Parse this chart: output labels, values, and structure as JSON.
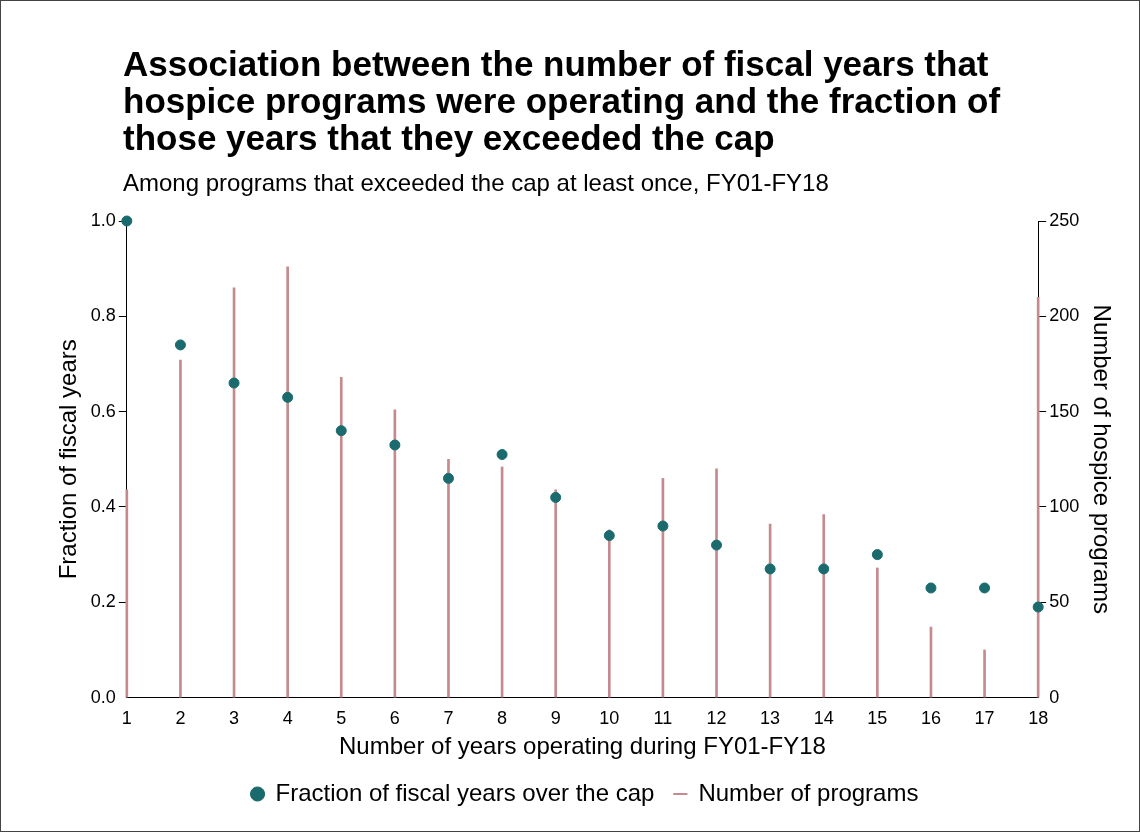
{
  "chart_data": {
    "type": "scatter",
    "title": "Association between the number of fiscal years that hospice programs were operating and the fraction of those years that they exceeded the cap",
    "subtitle": "Among programs that exceeded the cap at least once, FY01-FY18",
    "xlabel": "Number of years operating during FY01-FY18",
    "ylabel": "Fraction of fiscal years",
    "y2label": "Number of hospice programs",
    "x": [
      1,
      2,
      3,
      4,
      5,
      6,
      7,
      8,
      9,
      10,
      11,
      12,
      13,
      14,
      15,
      16,
      17,
      18
    ],
    "xlim": [
      1,
      18
    ],
    "xticks": [
      1,
      2,
      3,
      4,
      5,
      6,
      7,
      8,
      9,
      10,
      11,
      12,
      13,
      14,
      15,
      16,
      17,
      18
    ],
    "ylim": [
      0,
      1
    ],
    "yticks": [
      {
        "value": 0,
        "label": "0.0"
      },
      {
        "value": 0.2,
        "label": "0.2"
      },
      {
        "value": 0.4,
        "label": "0.4"
      },
      {
        "value": 0.6,
        "label": "0.6"
      },
      {
        "value": 0.8,
        "label": "0.8"
      },
      {
        "value": 1,
        "label": "1.0"
      }
    ],
    "y2lim": [
      0,
      250
    ],
    "y2ticks": [
      0,
      50,
      100,
      150,
      200,
      250
    ],
    "series": [
      {
        "name": "Fraction of fiscal years over the cap",
        "color": "#1b6b6e",
        "values": [
          1.0,
          0.74,
          0.66,
          0.63,
          0.56,
          0.53,
          0.46,
          0.51,
          0.42,
          0.34,
          0.36,
          0.32,
          0.27,
          0.27,
          0.3,
          0.23,
          0.23,
          0.19
        ]
      },
      {
        "name": "Number of programs",
        "type": "bar",
        "axis": "y2",
        "color": "#c48a8e",
        "values": [
          109,
          177,
          215,
          226,
          168,
          151,
          125,
          121,
          109,
          88,
          115,
          120,
          91,
          96,
          68,
          37,
          25,
          210
        ]
      }
    ],
    "marker": "circle",
    "grid": false,
    "legend": "bottom"
  }
}
